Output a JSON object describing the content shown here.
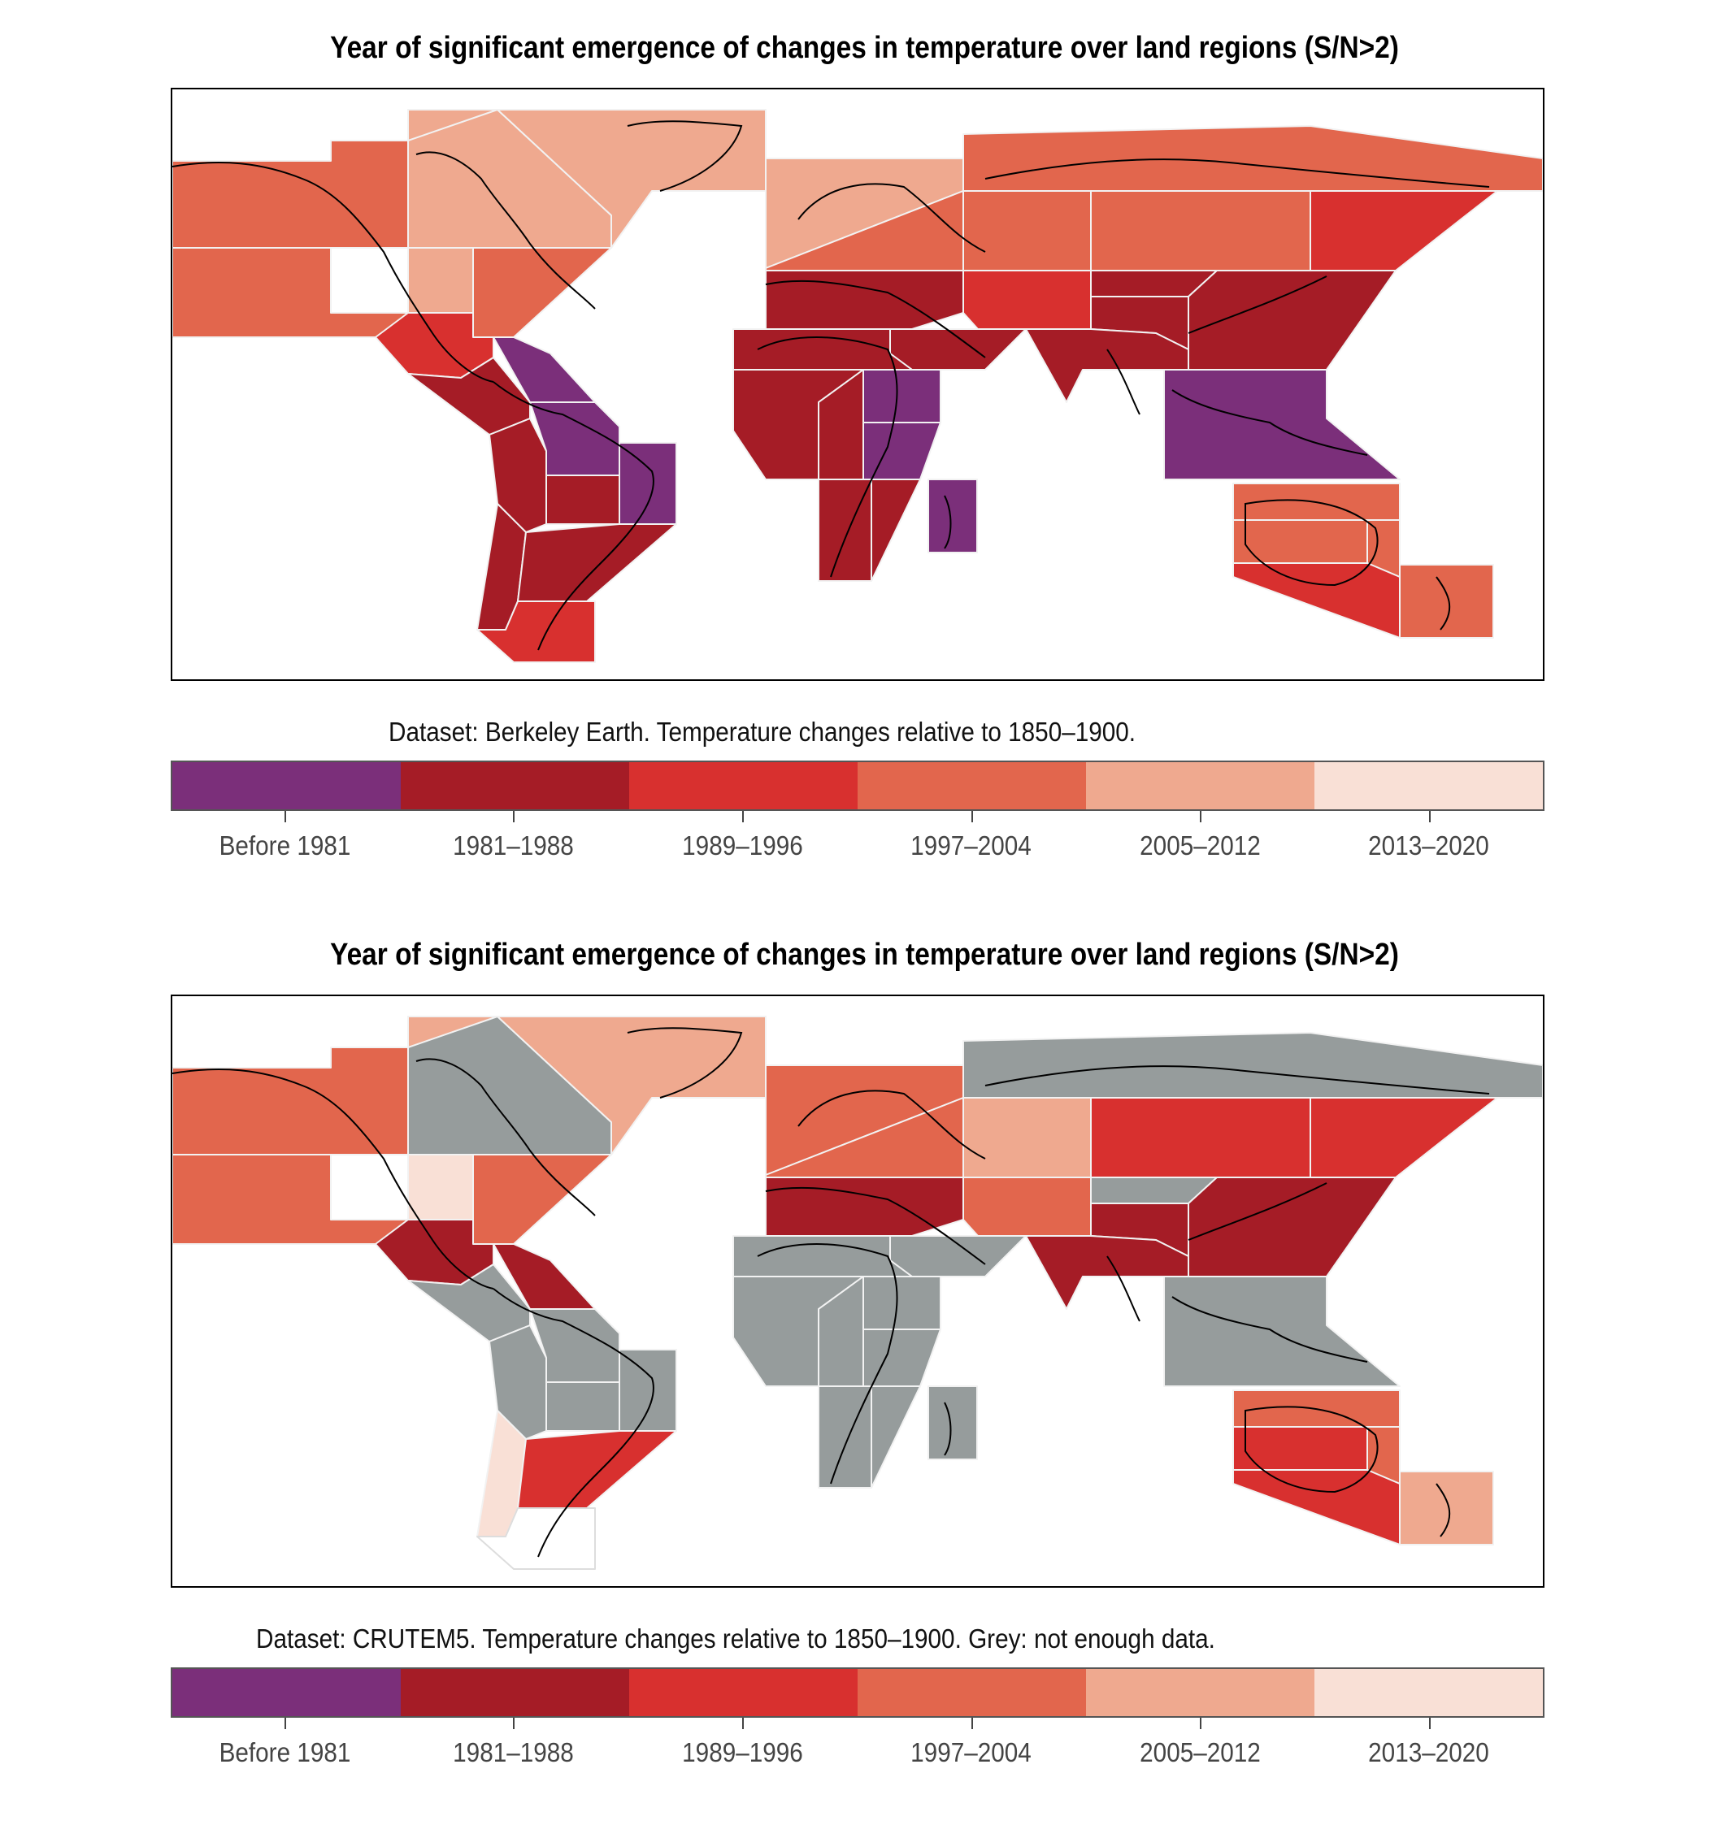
{
  "panels": [
    {
      "title": "Year of significant emergence of changes in temperature over land regions (S/N>2)",
      "caption": "Dataset: Berkeley Earth. Temperature changes relative to 1850–1900.",
      "regions": {
        "NWN": "c3",
        "NEN": "c4",
        "GIC": "c4",
        "WNA": "c3",
        "CNA": "c4",
        "ENA": "c3",
        "NCA": "c2",
        "SCA": "c1",
        "CAR": "c0",
        "NWS": "c1",
        "NSA": "c0",
        "NES": "c0",
        "SAM": "c1",
        "SWS": "c1",
        "SES": "c1",
        "SSA": "c2",
        "NEU": "c4",
        "WCE": "c3",
        "MED": "c1",
        "RAR": "c3",
        "WSB": "c3",
        "ESB": "c3",
        "RFE": "c2",
        "WCA": "c2",
        "ECA": "c1",
        "TIB": "c1",
        "EAS": "c1",
        "SAS": "c1",
        "ARP": "c1",
        "SAH": "c1",
        "WAF": "c1",
        "CAF": "c1",
        "NEAF": "c0",
        "SEAF": "c0",
        "WSAF": "c1",
        "ESAF": "c1",
        "MDG": "c0",
        "SEA": "c0",
        "NAU": "c3",
        "CAU": "c3",
        "EAU": "c3",
        "SAU": "c2",
        "NZ": "c3"
      }
    },
    {
      "title": "Year of significant emergence of changes in temperature over land regions (S/N>2)",
      "caption": "Dataset: CRUTEM5. Temperature changes relative to 1850–1900. Grey: not enough data.",
      "regions": {
        "NWN": "c3",
        "NEN": "grey",
        "GIC": "c4",
        "WNA": "c3",
        "CNA": "c5",
        "ENA": "c3",
        "NCA": "c1",
        "SCA": "grey",
        "CAR": "c1",
        "NWS": "grey",
        "NSA": "grey",
        "NES": "grey",
        "SAM": "grey",
        "SWS": "c5",
        "SES": "c2",
        "SSA": "white",
        "NEU": "c3",
        "WCE": "c3",
        "MED": "c1",
        "RAR": "grey",
        "WSB": "c4",
        "ESB": "c2",
        "RFE": "c2",
        "WCA": "c3",
        "ECA": "grey",
        "TIB": "c1",
        "EAS": "c1",
        "SAS": "c1",
        "ARP": "grey",
        "SAH": "grey",
        "WAF": "grey",
        "CAF": "grey",
        "NEAF": "grey",
        "SEAF": "grey",
        "WSAF": "grey",
        "ESAF": "grey",
        "MDG": "grey",
        "SEA": "grey",
        "NAU": "c3",
        "CAU": "c2",
        "EAU": "c3",
        "SAU": "c2",
        "NZ": "c4"
      }
    }
  ],
  "legend": {
    "categories": [
      "Before 1981",
      "1981–1988",
      "1989–1996",
      "1997–2004",
      "2005–2012",
      "2013–2020"
    ],
    "colors": {
      "c0": "#7b2f7a",
      "c1": "#a51c26",
      "c2": "#d8302f",
      "c3": "#e2664d",
      "c4": "#efa98f",
      "c5": "#f9e0d6",
      "grey": "#969c9c",
      "white": "#ffffff"
    }
  }
}
